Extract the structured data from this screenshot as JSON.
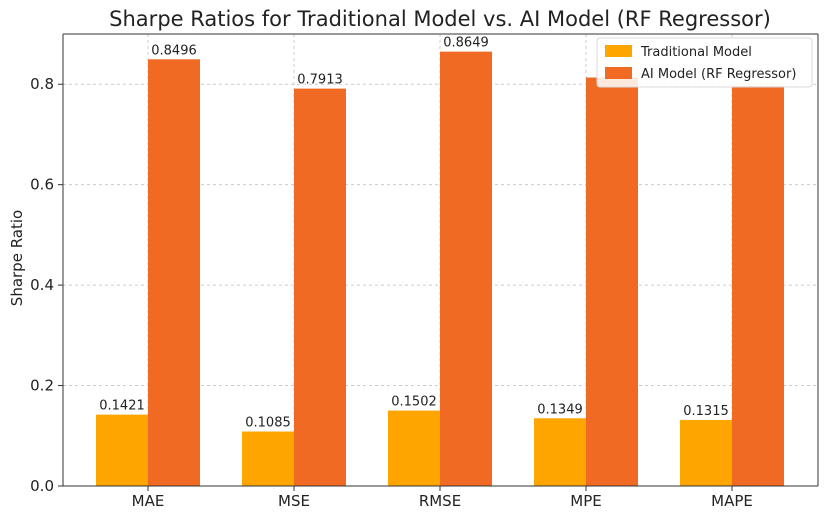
{
  "chart_data": {
    "type": "bar",
    "title": "Sharpe Ratios for Traditional Model vs. AI Model (RF Regressor)",
    "xlabel": "",
    "ylabel": "Sharpe Ratio",
    "categories": [
      "MAE",
      "MSE",
      "RMSE",
      "MPE",
      "MAPE"
    ],
    "series": [
      {
        "name": "Traditional Model",
        "color": "#FFA500",
        "values": [
          0.1421,
          0.1085,
          0.1502,
          0.1349,
          0.1315
        ],
        "labels": [
          "0.1421",
          "0.1085",
          "0.1502",
          "0.1349",
          "0.1315"
        ]
      },
      {
        "name": "AI Model (RF Regressor)",
        "color": "#F06A23",
        "values": [
          0.8496,
          0.7913,
          0.8649,
          0.8133,
          0.7965
        ],
        "labels": [
          "0.8496",
          "0.7913",
          "0.8649",
          "",
          ""
        ]
      }
    ],
    "ylim": [
      0,
      0.9
    ],
    "yticks": [
      0.0,
      0.2,
      0.4,
      0.6,
      0.8
    ],
    "ytick_labels": [
      "0.0",
      "0.2",
      "0.4",
      "0.6",
      "0.8"
    ],
    "grid": true,
    "legend_position": "top-right"
  }
}
